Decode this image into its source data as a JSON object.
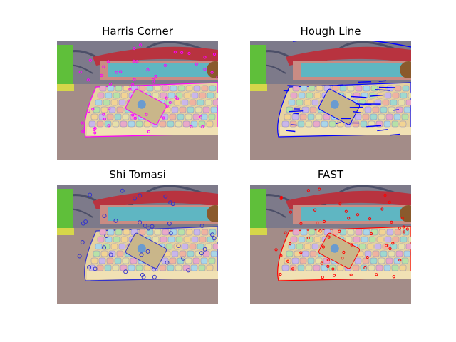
{
  "panels": [
    {
      "title": "Harris Corner",
      "overlay_color": "#ff00ff"
    },
    {
      "title": "Hough Line",
      "overlay_color": "#0000ff"
    },
    {
      "title": "Shi Tomasi",
      "overlay_color": "#3333cc"
    },
    {
      "title": "FAST",
      "overlay_color": "#ff0000"
    }
  ]
}
